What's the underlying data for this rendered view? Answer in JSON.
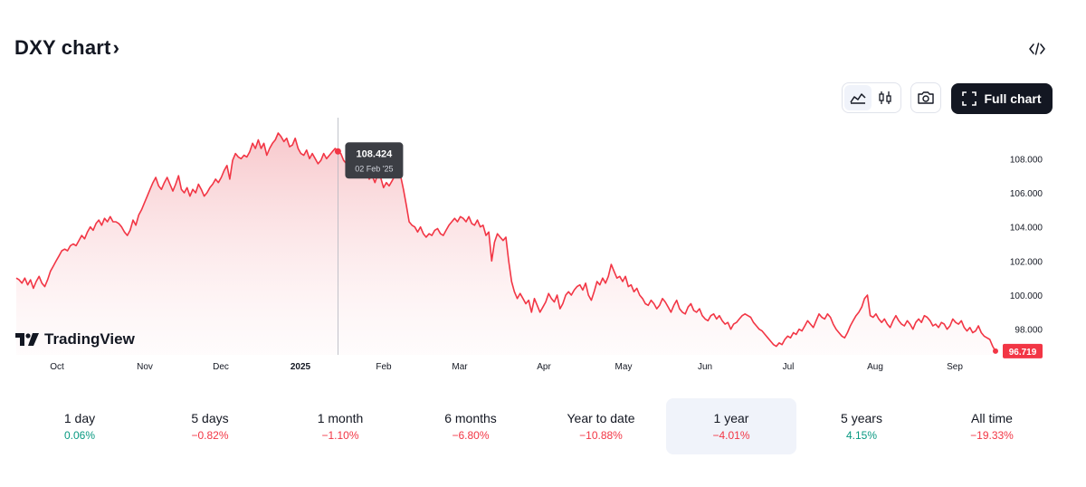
{
  "header": {
    "title": "DXY chart",
    "title_chevron": "›"
  },
  "toolbar": {
    "embed_icon": "code-icon",
    "line_icon": "area-chart-icon",
    "candle_icon": "candlestick-icon",
    "camera_icon": "camera-icon",
    "full_chart_icon": "fullscreen-icon",
    "full_chart_label": "Full chart"
  },
  "branding": {
    "logo_text": "TradingView"
  },
  "colors": {
    "line": "#f23645",
    "fill_top": "#f7c5c9",
    "positive": "#089981",
    "negative": "#f23645"
  },
  "chart_data": {
    "type": "area",
    "x_labels": [
      "Oct",
      "Nov",
      "Dec",
      "2025",
      "Feb",
      "Mar",
      "Apr",
      "May",
      "Jun",
      "Jul",
      "Aug",
      "Sep"
    ],
    "y_ticks": [
      "98.000",
      "100.000",
      "102.000",
      "104.000",
      "106.000",
      "108.000"
    ],
    "ylim": [
      96.5,
      109.5
    ],
    "series": [
      {
        "values": [
          101.0,
          100.9,
          100.7,
          101.0,
          100.6,
          100.9,
          100.4,
          100.8,
          101.1,
          100.7,
          100.5,
          100.9,
          101.4,
          101.7,
          102.0,
          102.3,
          102.6,
          102.7,
          102.6,
          102.9,
          103.0,
          102.9,
          103.2,
          103.5,
          103.3,
          103.7,
          104.0,
          103.8,
          104.2,
          104.4,
          104.1,
          104.5,
          104.3,
          104.6,
          104.3,
          104.3,
          104.2,
          104.0,
          103.7,
          103.5,
          103.8,
          104.4,
          104.1,
          104.7,
          105.0,
          105.4,
          105.8,
          106.2,
          106.6,
          106.9,
          106.4,
          106.2,
          106.6,
          106.9,
          106.5,
          106.1,
          106.5,
          107.0,
          106.2,
          106.0,
          106.3,
          105.8,
          106.2,
          106.0,
          106.5,
          106.2,
          105.8,
          106.0,
          106.3,
          106.5,
          106.8,
          106.6,
          106.9,
          107.3,
          107.6,
          106.8,
          107.9,
          108.3,
          108.1,
          108.0,
          108.2,
          108.1,
          108.4,
          108.9,
          108.6,
          109.1,
          108.6,
          108.9,
          108.2,
          108.6,
          108.9,
          109.1,
          109.5,
          109.3,
          109.0,
          109.2,
          108.7,
          108.8,
          109.2,
          108.6,
          108.3,
          108.2,
          108.5,
          108.0,
          108.3,
          108.0,
          107.7,
          107.9,
          108.3,
          108.0,
          108.2,
          108.4,
          108.6,
          108.424,
          108.3,
          107.9,
          107.7,
          107.4,
          107.6,
          107.3,
          107.5,
          107.1,
          106.9,
          107.2,
          106.8,
          107.0,
          106.6,
          107.1,
          106.9,
          106.3,
          106.6,
          106.4,
          106.7,
          107.0,
          107.6,
          107.0,
          106.2,
          105.3,
          104.3,
          104.1,
          104.0,
          103.7,
          104.0,
          103.6,
          103.4,
          103.6,
          103.5,
          103.8,
          103.9,
          103.6,
          103.5,
          103.8,
          104.1,
          104.3,
          104.5,
          104.3,
          104.6,
          104.5,
          104.3,
          104.6,
          104.2,
          104.1,
          104.4,
          104.0,
          104.1,
          103.5,
          103.7,
          102.0,
          103.1,
          103.6,
          103.4,
          103.2,
          103.4,
          102.0,
          100.8,
          100.2,
          99.8,
          100.1,
          99.8,
          99.5,
          99.7,
          99.0,
          99.8,
          99.4,
          99.0,
          99.3,
          99.6,
          100.1,
          99.8,
          99.6,
          100.0,
          99.2,
          99.5,
          100.0,
          100.2,
          100.0,
          100.3,
          100.5,
          100.6,
          100.3,
          100.7,
          100.0,
          99.7,
          100.2,
          100.8,
          100.6,
          101.0,
          100.7,
          101.1,
          101.8,
          101.4,
          101.0,
          101.1,
          100.8,
          101.1,
          100.5,
          100.6,
          100.2,
          100.4,
          100.0,
          99.8,
          99.5,
          99.4,
          99.7,
          99.5,
          99.2,
          99.4,
          99.8,
          99.6,
          99.3,
          99.0,
          99.4,
          99.7,
          99.2,
          99.0,
          98.9,
          99.3,
          99.5,
          99.1,
          99.0,
          99.2,
          98.8,
          98.6,
          98.5,
          98.8,
          98.9,
          98.6,
          98.8,
          98.5,
          98.3,
          98.4,
          98.0,
          98.3,
          98.4,
          98.6,
          98.8,
          98.9,
          98.8,
          98.7,
          98.4,
          98.2,
          98.0,
          97.9,
          97.7,
          97.5,
          97.3,
          97.1,
          97.0,
          97.2,
          97.1,
          97.4,
          97.6,
          97.5,
          97.8,
          97.7,
          98.0,
          97.9,
          98.2,
          98.5,
          98.3,
          98.1,
          98.5,
          98.9,
          98.7,
          98.6,
          98.9,
          98.7,
          98.3,
          98.0,
          97.8,
          97.6,
          97.5,
          97.8,
          98.2,
          98.5,
          98.8,
          99.0,
          99.3,
          99.8,
          100.0,
          98.8,
          98.7,
          98.9,
          98.6,
          98.4,
          98.6,
          98.3,
          98.1,
          98.5,
          98.8,
          98.5,
          98.3,
          98.2,
          98.5,
          98.3,
          98.0,
          98.4,
          98.6,
          98.4,
          98.8,
          98.7,
          98.5,
          98.2,
          98.3,
          98.1,
          98.4,
          98.3,
          98.0,
          98.2,
          98.6,
          98.4,
          98.3,
          98.5,
          98.1,
          97.9,
          98.1,
          97.8,
          97.9,
          98.2,
          97.8,
          97.6,
          97.5,
          97.4,
          97.0,
          96.719
        ]
      }
    ],
    "hover": {
      "value": "108.424",
      "date": "02 Feb '25"
    },
    "last_value": "96.719",
    "grid": false,
    "y_axis_position": "right"
  },
  "periods": [
    {
      "label": "1 day",
      "value": "0.06%",
      "positive": true
    },
    {
      "label": "5 days",
      "value": "−0.82%",
      "positive": false
    },
    {
      "label": "1 month",
      "value": "−1.10%",
      "positive": false
    },
    {
      "label": "6 months",
      "value": "−6.80%",
      "positive": false
    },
    {
      "label": "Year to date",
      "value": "−10.88%",
      "positive": false
    },
    {
      "label": "1 year",
      "value": "−4.01%",
      "positive": false,
      "active": true
    },
    {
      "label": "5 years",
      "value": "4.15%",
      "positive": true
    },
    {
      "label": "All time",
      "value": "−19.33%",
      "positive": false
    }
  ]
}
